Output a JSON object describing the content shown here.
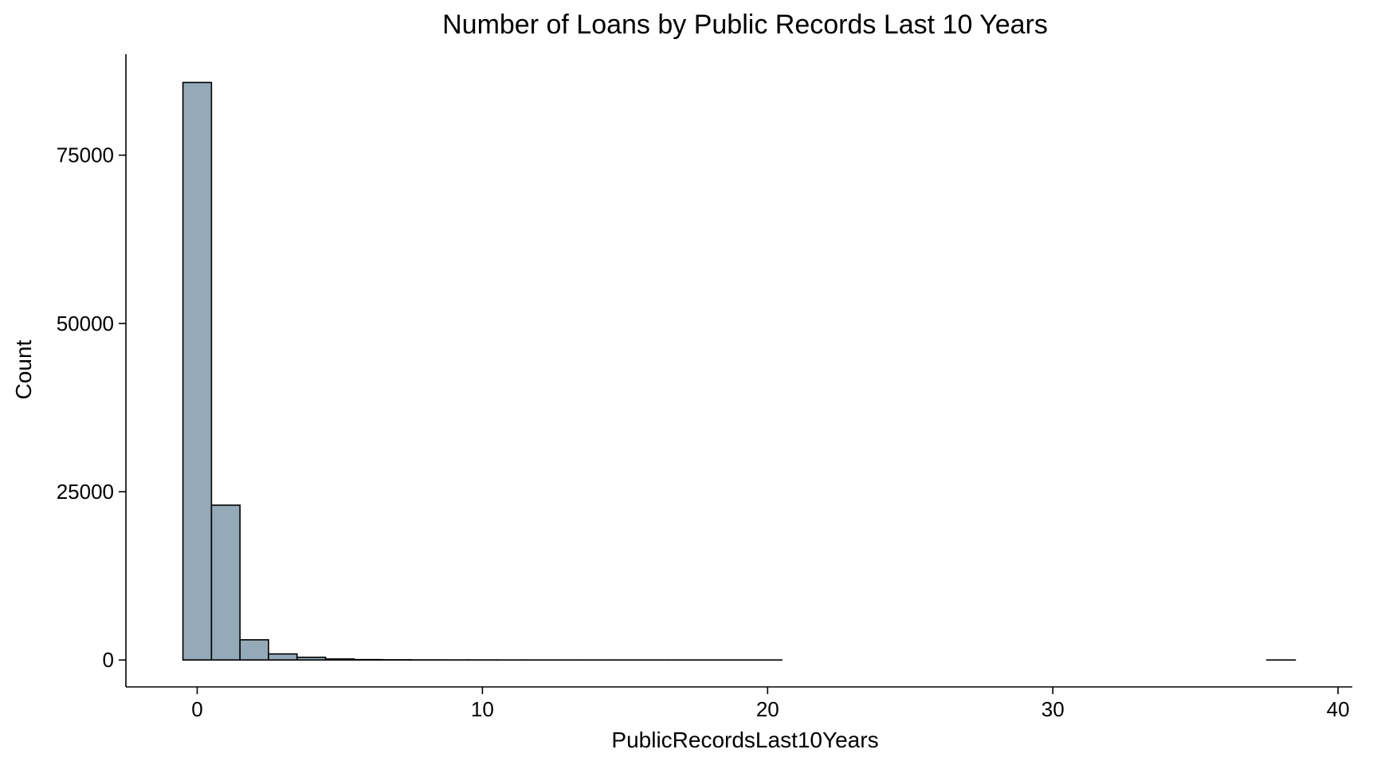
{
  "chart_data": {
    "type": "bar",
    "title": "Number of Loans by Public Records Last 10 Years",
    "xlabel": "PublicRecordsLast10Years",
    "ylabel": "Count",
    "xlim": [
      -2.5,
      40.5
    ],
    "ylim": [
      -4000,
      90000
    ],
    "bin_width": 1,
    "bins": [
      {
        "x": 0,
        "count": 85800
      },
      {
        "x": 1,
        "count": 23000
      },
      {
        "x": 2,
        "count": 3000
      },
      {
        "x": 3,
        "count": 900
      },
      {
        "x": 4,
        "count": 400
      },
      {
        "x": 5,
        "count": 150
      },
      {
        "x": 6,
        "count": 60
      },
      {
        "x": 7,
        "count": 30
      },
      {
        "x": 8,
        "count": 15
      },
      {
        "x": 9,
        "count": 10
      },
      {
        "x": 10,
        "count": 8
      },
      {
        "x": 11,
        "count": 5
      },
      {
        "x": 12,
        "count": 4
      },
      {
        "x": 13,
        "count": 3
      },
      {
        "x": 14,
        "count": 2
      },
      {
        "x": 15,
        "count": 2
      },
      {
        "x": 16,
        "count": 1
      },
      {
        "x": 17,
        "count": 1
      },
      {
        "x": 18,
        "count": 1
      },
      {
        "x": 19,
        "count": 1
      },
      {
        "x": 20,
        "count": 1
      },
      {
        "x": 21,
        "count": 0
      },
      {
        "x": 22,
        "count": 0
      },
      {
        "x": 23,
        "count": 0
      },
      {
        "x": 24,
        "count": 0
      },
      {
        "x": 25,
        "count": 0
      },
      {
        "x": 26,
        "count": 0
      },
      {
        "x": 27,
        "count": 0
      },
      {
        "x": 28,
        "count": 0
      },
      {
        "x": 29,
        "count": 0
      },
      {
        "x": 30,
        "count": 0
      },
      {
        "x": 31,
        "count": 0
      },
      {
        "x": 32,
        "count": 0
      },
      {
        "x": 33,
        "count": 0
      },
      {
        "x": 34,
        "count": 0
      },
      {
        "x": 35,
        "count": 0
      },
      {
        "x": 36,
        "count": 0
      },
      {
        "x": 37,
        "count": 0
      },
      {
        "x": 38,
        "count": 1
      }
    ],
    "x_ticks": [
      0,
      10,
      20,
      30,
      40
    ],
    "x_tick_labels": [
      "0",
      "10",
      "20",
      "30",
      "40"
    ],
    "y_ticks": [
      0,
      25000,
      50000,
      75000
    ],
    "y_tick_labels": [
      "0",
      "25000",
      "50000",
      "75000"
    ],
    "bar_fill": "#95aab9",
    "bar_stroke": "#000000",
    "grid": false,
    "legend": "none"
  }
}
